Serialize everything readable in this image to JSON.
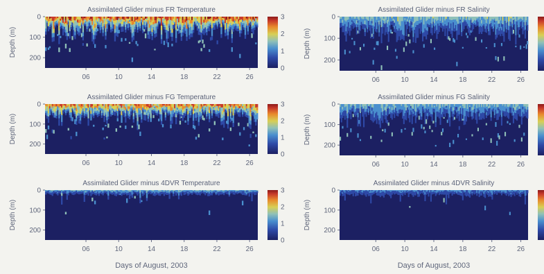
{
  "chart_data": {
    "type": "heatmap",
    "shared": {
      "ylabel": "Depth (m)",
      "ylim": [
        0,
        250
      ],
      "yticks": [
        0,
        100,
        200
      ],
      "xlim": [
        1,
        27
      ],
      "xticks": [
        6,
        10,
        14,
        18,
        22,
        26
      ],
      "xticklabels": [
        "06",
        "10",
        "14",
        "18",
        "22",
        "26"
      ],
      "xlabel": "Days of August, 2003",
      "colorbar_ticks": [
        0,
        1,
        2,
        3
      ],
      "colorbar_range": [
        0,
        3
      ],
      "colormap": [
        "#1c2062",
        "#2e49a6",
        "#4a8fce",
        "#8fc0b8",
        "#d8cf55",
        "#e88a2c",
        "#c83a2a",
        "#8c1a1a"
      ]
    },
    "panels": [
      {
        "id": "fr-temp",
        "title": "Assimilated Glider minus FR Temperature",
        "variable": "Temperature",
        "reference": "FR",
        "top_layer_depth_m": 55,
        "intensity": 2.8,
        "speckle_density": 0.55,
        "show_xlabel": false,
        "show_colorbar_ticks": true
      },
      {
        "id": "fr-sal",
        "title": "Assimilated Glider minus FR Salinity",
        "variable": "Salinity",
        "reference": "FR",
        "top_layer_depth_m": 70,
        "intensity": 1.4,
        "speckle_density": 0.5,
        "show_xlabel": false,
        "show_colorbar_ticks": false
      },
      {
        "id": "fg-temp",
        "title": "Assimilated Glider minus FG Temperature",
        "variable": "Temperature",
        "reference": "FG",
        "top_layer_depth_m": 50,
        "intensity": 2.6,
        "speckle_density": 0.55,
        "show_xlabel": false,
        "show_colorbar_ticks": true
      },
      {
        "id": "fg-sal",
        "title": "Assimilated Glider minus FG Salinity",
        "variable": "Salinity",
        "reference": "FG",
        "top_layer_depth_m": 65,
        "intensity": 1.3,
        "speckle_density": 0.5,
        "show_xlabel": false,
        "show_colorbar_ticks": false
      },
      {
        "id": "4dvr-temp",
        "title": "Assimilated Glider minus 4DVR Temperature",
        "variable": "Temperature",
        "reference": "4DVR",
        "top_layer_depth_m": 25,
        "intensity": 1.2,
        "speckle_density": 0.08,
        "show_xlabel": true,
        "show_colorbar_ticks": true
      },
      {
        "id": "4dvr-sal",
        "title": "Assimilated Glider minus 4DVR Salinity",
        "variable": "Salinity",
        "reference": "4DVR",
        "top_layer_depth_m": 30,
        "intensity": 0.9,
        "speckle_density": 0.1,
        "show_xlabel": true,
        "show_colorbar_ticks": false
      }
    ]
  }
}
